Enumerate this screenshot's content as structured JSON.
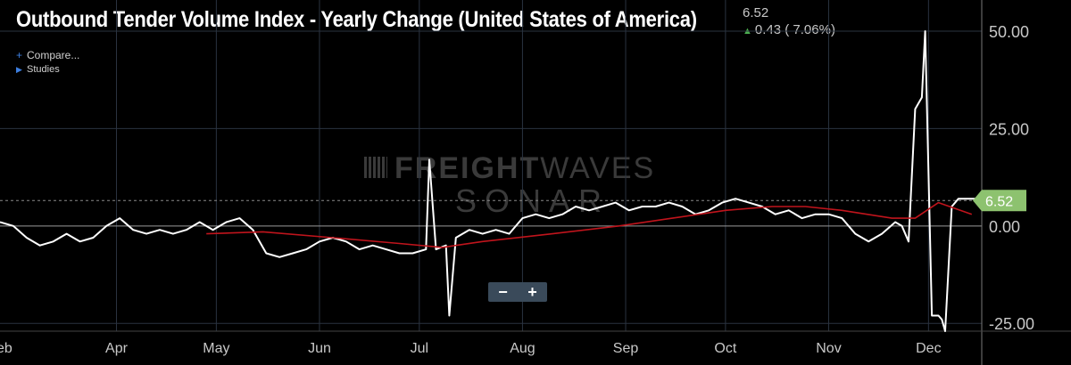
{
  "header": {
    "title": "Outbound Tender Volume Index - Yearly Change (United States of America)",
    "last_value": "6.52",
    "change_text": "0.43 ( 7.06%)",
    "compare_label": "Compare...",
    "studies_label": "Studies"
  },
  "watermark": {
    "line1_bold": "FREIGHT",
    "line1_thin": "WAVES",
    "line2": "SONAR"
  },
  "zoom": {
    "minus": "−",
    "plus": "+"
  },
  "colors": {
    "background": "#000000",
    "main_line": "#ffffff",
    "moving_average": "#c0141c",
    "last_value_badge": "#8dc26f",
    "grid": "#2a3340",
    "zero_line": "#9a9a9a"
  },
  "chart_data": {
    "type": "line",
    "title": "Outbound Tender Volume Index - Yearly Change (United States of America)",
    "xlabel": "",
    "ylabel": "",
    "ylim": [
      -27,
      58
    ],
    "yticks": [
      "50.00",
      "25.00",
      "0.00",
      "-25.00"
    ],
    "xticks": [
      "Feb",
      "Apr",
      "May",
      "Jun",
      "Jul",
      "Aug",
      "Sep",
      "Oct",
      "Nov",
      "Dec"
    ],
    "grid": true,
    "last_value_label": "6.52",
    "reference_line": 6.52,
    "x_domain": [
      "2019-02-25",
      "2019-12-17"
    ],
    "xtick_dates": [
      "2019-02-25",
      "2019-04-01",
      "2019-05-01",
      "2019-06-01",
      "2019-07-01",
      "2019-08-01",
      "2019-09-01",
      "2019-10-01",
      "2019-11-01",
      "2019-12-01"
    ],
    "series": [
      {
        "x": [
          "2019-02-25",
          "2019-03-01",
          "2019-03-05",
          "2019-03-09",
          "2019-03-13",
          "2019-03-17",
          "2019-03-21",
          "2019-03-25",
          "2019-03-29",
          "2019-04-02",
          "2019-04-06",
          "2019-04-10",
          "2019-04-14",
          "2019-04-18",
          "2019-04-22",
          "2019-04-26",
          "2019-04-30",
          "2019-05-04",
          "2019-05-08",
          "2019-05-12",
          "2019-05-16",
          "2019-05-20",
          "2019-05-24",
          "2019-05-28",
          "2019-06-01",
          "2019-06-05",
          "2019-06-09",
          "2019-06-13",
          "2019-06-17",
          "2019-06-21",
          "2019-06-25",
          "2019-06-29",
          "2019-07-03",
          "2019-07-04",
          "2019-07-06",
          "2019-07-09",
          "2019-07-10",
          "2019-07-12",
          "2019-07-16",
          "2019-07-20",
          "2019-07-24",
          "2019-07-28",
          "2019-08-01",
          "2019-08-05",
          "2019-08-09",
          "2019-08-13",
          "2019-08-17",
          "2019-08-21",
          "2019-08-25",
          "2019-08-29",
          "2019-09-02",
          "2019-09-06",
          "2019-09-10",
          "2019-09-14",
          "2019-09-18",
          "2019-09-22",
          "2019-09-26",
          "2019-09-30",
          "2019-10-04",
          "2019-10-08",
          "2019-10-12",
          "2019-10-16",
          "2019-10-20",
          "2019-10-24",
          "2019-10-28",
          "2019-11-01",
          "2019-11-05",
          "2019-11-09",
          "2019-11-13",
          "2019-11-17",
          "2019-11-21",
          "2019-11-23",
          "2019-11-25",
          "2019-11-27",
          "2019-11-29",
          "2019-11-30",
          "2019-12-02",
          "2019-12-04",
          "2019-12-05",
          "2019-12-06",
          "2019-12-08",
          "2019-12-10",
          "2019-12-14",
          "2019-12-17"
        ],
        "values": [
          1,
          0,
          -3,
          -5,
          -4,
          -2,
          -4,
          -3,
          0,
          2,
          -1,
          -2,
          -1,
          -2,
          -1,
          1,
          -1,
          1,
          2,
          -1,
          -7,
          -8,
          -7,
          -6,
          -4,
          -3,
          -4,
          -6,
          -5,
          -6,
          -7,
          -7,
          -6,
          17,
          -6,
          -5,
          -23,
          -3,
          -1,
          -2,
          -1,
          -2,
          2,
          3,
          2,
          3,
          5,
          4,
          5,
          6,
          4,
          5,
          5,
          6,
          5,
          3,
          4,
          6,
          7,
          6,
          5,
          3,
          4,
          2,
          3,
          3,
          2,
          -2,
          -4,
          -2,
          1,
          0,
          -4,
          30,
          33,
          50,
          -23,
          -23,
          -24,
          -27,
          5,
          7,
          7,
          7
        ]
      },
      {
        "x": [
          "2019-04-28",
          "2019-05-15",
          "2019-06-05",
          "2019-06-25",
          "2019-07-08",
          "2019-07-20",
          "2019-08-10",
          "2019-08-30",
          "2019-09-15",
          "2019-10-01",
          "2019-10-15",
          "2019-10-25",
          "2019-11-05",
          "2019-11-20",
          "2019-11-27",
          "2019-12-04",
          "2019-12-14"
        ],
        "values": [
          -2,
          -1.5,
          -3,
          -4.5,
          -5.5,
          -4,
          -2,
          0,
          2,
          4,
          5,
          5,
          4,
          2,
          2,
          6,
          3
        ]
      }
    ]
  }
}
